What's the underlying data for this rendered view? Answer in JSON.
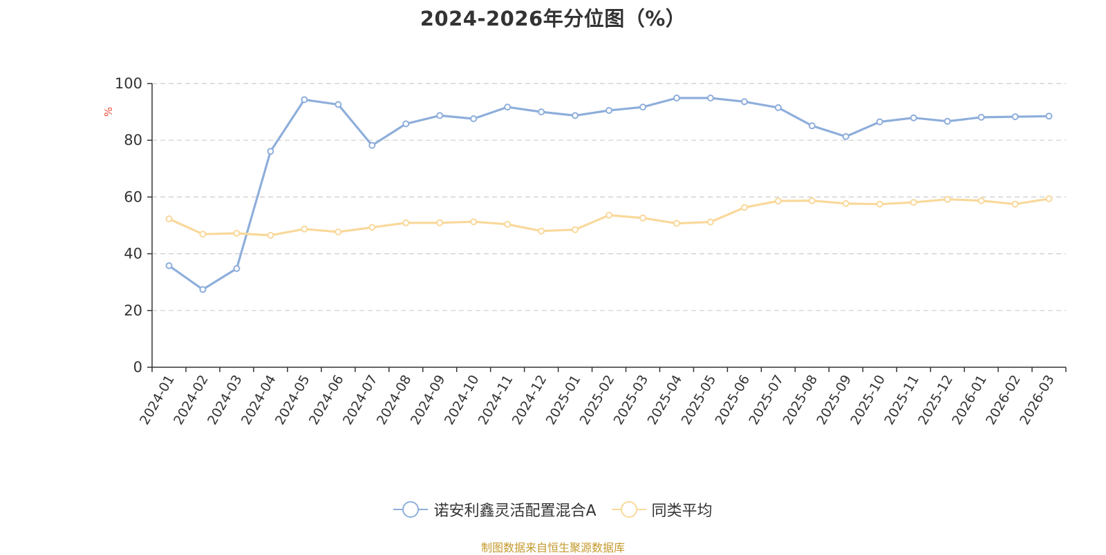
{
  "chart_data": {
    "type": "line",
    "title": "2024-2026年分位图（%）",
    "ylabel": "%",
    "xlabel": "",
    "ylim": [
      0,
      100
    ],
    "yticks": [
      0,
      20,
      40,
      60,
      80,
      100
    ],
    "grid": true,
    "legend_position": "bottom",
    "categories": [
      "2024-01",
      "2024-02",
      "2024-03",
      "2024-04",
      "2024-05",
      "2024-06",
      "2024-07",
      "2024-08",
      "2024-09",
      "2024-10",
      "2024-11",
      "2024-12",
      "2025-01",
      "2025-02",
      "2025-03",
      "2025-04",
      "2025-05",
      "2025-06",
      "2025-07",
      "2025-08",
      "2025-09",
      "2025-10",
      "2025-11",
      "2025-12",
      "2026-01",
      "2026-02",
      "2026-03"
    ],
    "series": [
      {
        "name": "诺安利鑫灵活配置混合A",
        "color": "#8eaedb",
        "values": [
          35.8,
          27.4,
          34.8,
          76.1,
          94.3,
          92.6,
          78.2,
          85.8,
          88.7,
          87.6,
          91.7,
          90.0,
          88.7,
          90.5,
          91.7,
          94.9,
          94.9,
          93.6,
          91.5,
          85.1,
          81.3,
          86.5,
          87.9,
          86.7,
          88.1,
          88.3,
          88.5
        ]
      },
      {
        "name": "同类平均",
        "color": "#f9d89a",
        "values": [
          52.3,
          46.9,
          47.2,
          46.5,
          48.7,
          47.7,
          49.3,
          50.9,
          50.9,
          51.3,
          50.4,
          48.0,
          48.5,
          53.6,
          52.6,
          50.7,
          51.2,
          56.3,
          58.6,
          58.7,
          57.7,
          57.5,
          58.1,
          59.2,
          58.7,
          57.5,
          59.4
        ]
      }
    ]
  },
  "colors": {
    "ylabel": "#e84a3a",
    "source": "#c49a2c",
    "grid": "#cccccc",
    "axis": "#333333"
  },
  "source_text": "制图数据来自恒生聚源数据库"
}
